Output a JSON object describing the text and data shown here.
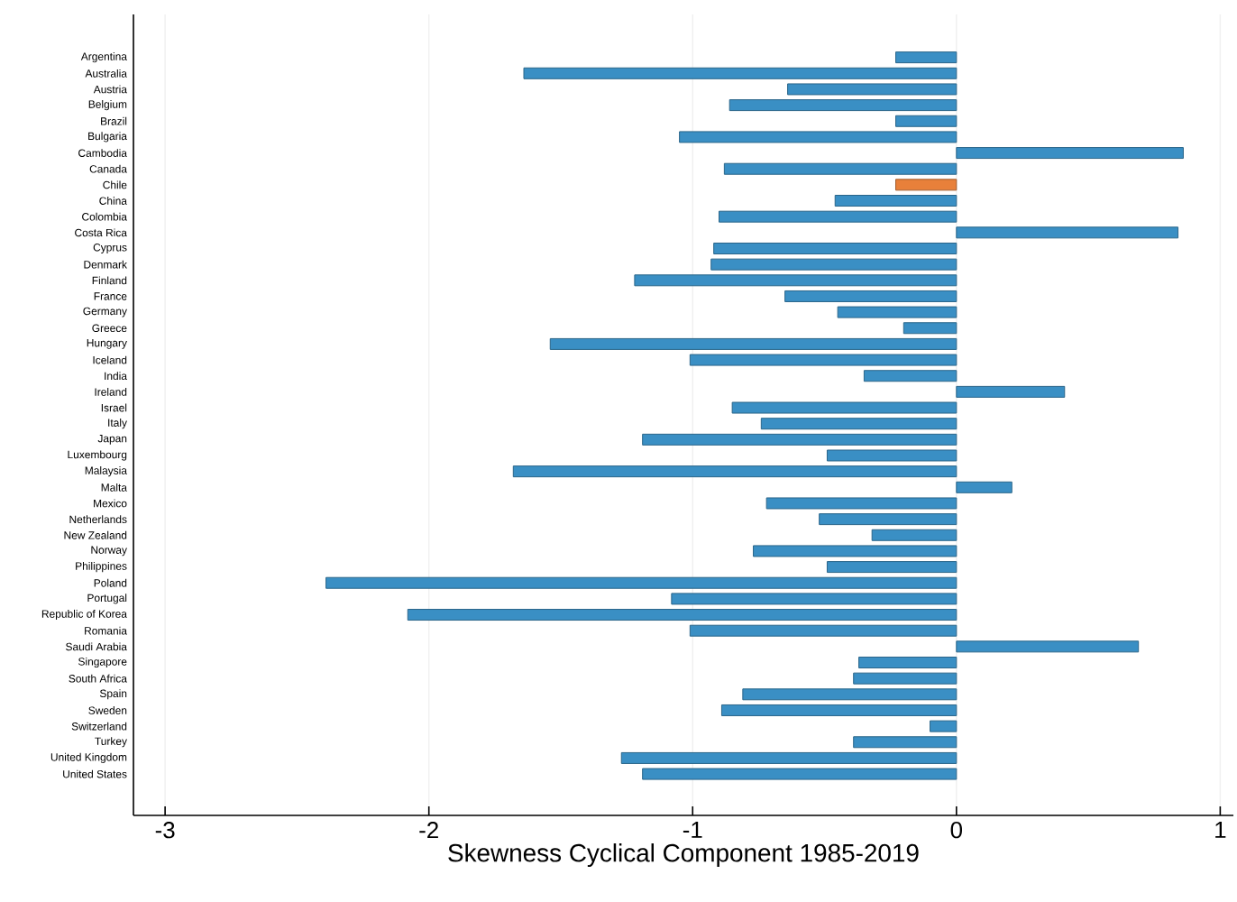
{
  "chart_data": {
    "type": "bar",
    "orientation": "horizontal",
    "xlabel": "Skewness Cyclical Component 1985-2019",
    "categories": [
      "Argentina",
      "Australia",
      "Austria",
      "Belgium",
      "Brazil",
      "Bulgaria",
      "Cambodia",
      "Canada",
      "Chile",
      "China",
      "Colombia",
      "Costa Rica",
      "Cyprus",
      "Denmark",
      "Finland",
      "France",
      "Germany",
      "Greece",
      "Hungary",
      "Iceland",
      "India",
      "Ireland",
      "Israel",
      "Italy",
      "Japan",
      "Luxembourg",
      "Malaysia",
      "Malta",
      "Mexico",
      "Netherlands",
      "New Zealand",
      "Norway",
      "Philippines",
      "Poland",
      "Portugal",
      "Republic of Korea",
      "Romania",
      "Saudi Arabia",
      "Singapore",
      "South Africa",
      "Spain",
      "Sweden",
      "Switzerland",
      "Turkey",
      "United Kingdom",
      "United States"
    ],
    "values": [
      -0.23,
      -1.64,
      -0.64,
      -0.86,
      -0.23,
      -1.05,
      0.86,
      -0.88,
      -0.23,
      -0.46,
      -0.9,
      0.84,
      -0.92,
      -0.93,
      -1.22,
      -0.65,
      -0.45,
      -0.2,
      -1.54,
      -1.01,
      -0.35,
      0.41,
      -0.85,
      -0.74,
      -1.19,
      -0.49,
      -1.68,
      0.21,
      -0.72,
      -0.52,
      -0.32,
      -0.77,
      -0.49,
      -2.39,
      -1.08,
      -2.08,
      -1.01,
      0.69,
      -0.37,
      -0.39,
      -0.81,
      -0.89,
      -0.1,
      -0.39,
      -1.27,
      -1.19
    ],
    "colors": [
      "#3a8fc4",
      "#3a8fc4",
      "#3a8fc4",
      "#3a8fc4",
      "#3a8fc4",
      "#3a8fc4",
      "#3a8fc4",
      "#3a8fc4",
      "#e8803a",
      "#3a8fc4",
      "#3a8fc4",
      "#3a8fc4",
      "#3a8fc4",
      "#3a8fc4",
      "#3a8fc4",
      "#3a8fc4",
      "#3a8fc4",
      "#3a8fc4",
      "#3a8fc4",
      "#3a8fc4",
      "#3a8fc4",
      "#3a8fc4",
      "#3a8fc4",
      "#3a8fc4",
      "#3a8fc4",
      "#3a8fc4",
      "#3a8fc4",
      "#3a8fc4",
      "#3a8fc4",
      "#3a8fc4",
      "#3a8fc4",
      "#3a8fc4",
      "#3a8fc4",
      "#3a8fc4",
      "#3a8fc4",
      "#3a8fc4",
      "#3a8fc4",
      "#3a8fc4",
      "#3a8fc4",
      "#3a8fc4",
      "#3a8fc4",
      "#3a8fc4",
      "#3a8fc4",
      "#3a8fc4",
      "#3a8fc4",
      "#3a8fc4"
    ],
    "xlim": [
      -3.12,
      1.05
    ],
    "xticks": [
      -3,
      -2,
      -1,
      0,
      1
    ],
    "grid": "x"
  }
}
